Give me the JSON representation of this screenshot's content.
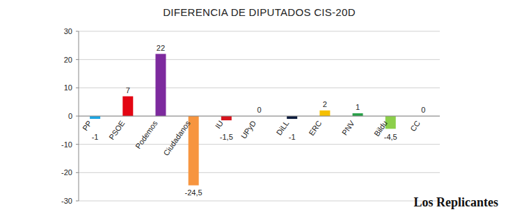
{
  "chart_data": {
    "type": "bar",
    "title": "DIFERENCIA DE DIPUTADOS CIS-20D",
    "annotation": "Los Replicantes",
    "categories": [
      "PP",
      "PSOE",
      "Podemos",
      "Ciudadanos",
      "IU",
      "UPyD",
      "DiLL",
      "ERC",
      "PNV",
      "Bildu",
      "CC"
    ],
    "values": [
      -1,
      7,
      22,
      -24.5,
      -1.5,
      0,
      -1,
      2,
      1,
      -4.5,
      0
    ],
    "value_labels": [
      "-1",
      "7",
      "22",
      "-24,5",
      "-1,5",
      "0",
      "-1",
      "2",
      "1",
      "-4,5",
      "0"
    ],
    "colors": [
      "#1ea6e3",
      "#e30613",
      "#7d2a9e",
      "#f7953f",
      "#d8141d",
      "#e5007d",
      "#0d1c3d",
      "#f5c000",
      "#2aa14a",
      "#8ccf4a",
      "#ffd200"
    ],
    "ylim": [
      -30,
      30
    ],
    "yticks": [
      -30,
      -20,
      -10,
      0,
      10,
      20,
      30
    ],
    "grid": true,
    "data_labels": true
  }
}
